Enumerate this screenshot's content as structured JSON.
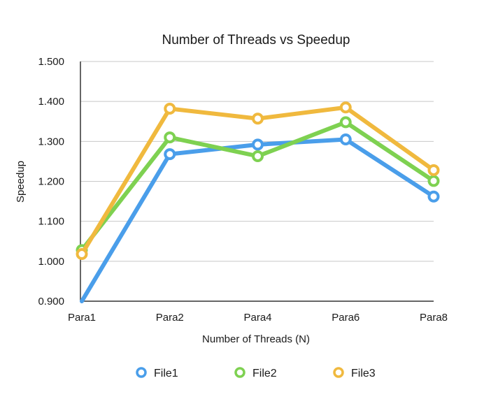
{
  "chart_data": {
    "type": "line",
    "title": "Number of Threads vs Speedup",
    "xlabel": "Number of Threads (N)",
    "ylabel": "Speedup",
    "categories": [
      "Para1",
      "Para2",
      "Para4",
      "Para6",
      "Para8"
    ],
    "ylim": [
      0.9,
      1.5
    ],
    "yticks": [
      "0.900",
      "1.000",
      "1.100",
      "1.200",
      "1.300",
      "1.400",
      "1.500"
    ],
    "grid": true,
    "legend_position": "bottom",
    "series": [
      {
        "name": "File1",
        "color": "#4a9eea",
        "values": [
          0.895,
          1.268,
          1.292,
          1.305,
          1.162
        ]
      },
      {
        "name": "File2",
        "color": "#7ed151",
        "values": [
          1.028,
          1.31,
          1.263,
          1.348,
          1.201
        ]
      },
      {
        "name": "File3",
        "color": "#f0b93e",
        "values": [
          1.018,
          1.382,
          1.357,
          1.385,
          1.228
        ]
      }
    ]
  }
}
